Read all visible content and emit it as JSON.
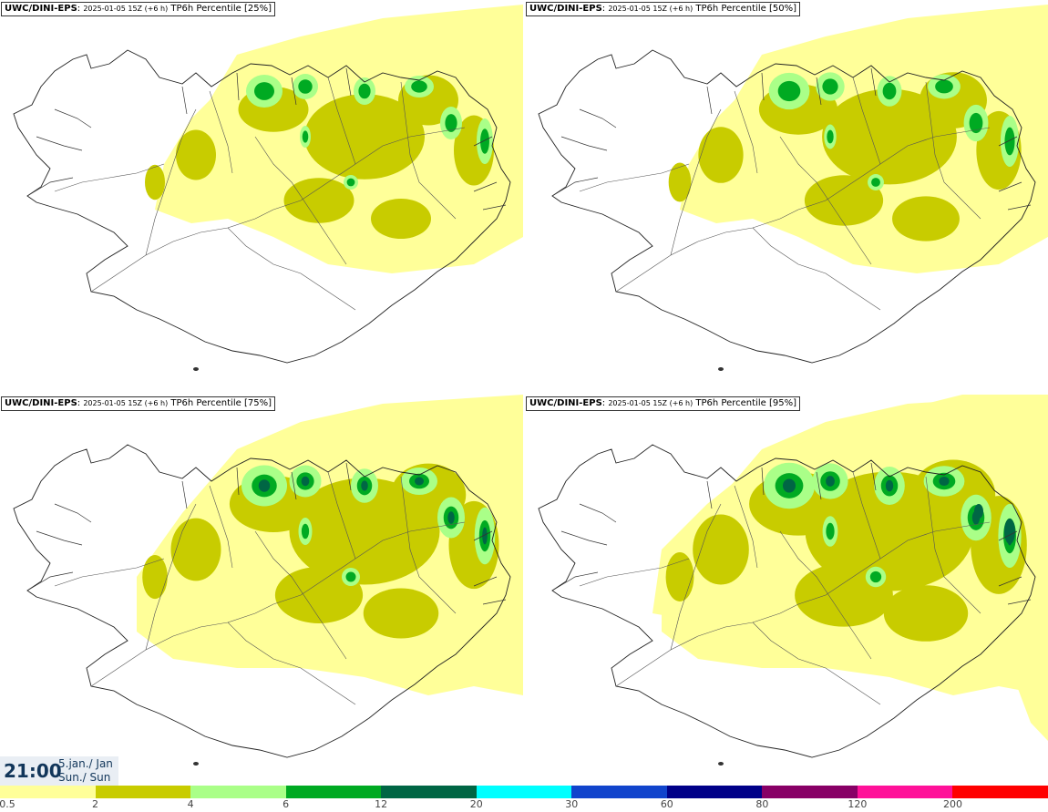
{
  "panels": [
    {
      "model": "UWC/DINI-EPS",
      "run": "2025-01-05 15Z (+6 h)",
      "param": "TP6h Percentile [25%]",
      "max_class": 4
    },
    {
      "model": "UWC/DINI-EPS",
      "run": "2025-01-05 15Z (+6 h)",
      "param": "TP6h Percentile [50%]",
      "max_class": 4
    },
    {
      "model": "UWC/DINI-EPS",
      "run": "2025-01-05 15Z (+6 h)",
      "param": "TP6h Percentile [75%]",
      "max_class": 5
    },
    {
      "model": "UWC/DINI-EPS",
      "run": "2025-01-05 15Z (+6 h)",
      "param": "TP6h Percentile [95%]",
      "max_class": 6
    }
  ],
  "valid_time": {
    "time": "21:00",
    "date_line1": "5.jan./ Jan",
    "date_line2": "Sun./ Sun"
  },
  "legend": {
    "colors": [
      "#ffff99",
      "#c8cc00",
      "#aaff88",
      "#00aa22",
      "#006644",
      "#00ffff",
      "#1144cc",
      "#000088",
      "#880066",
      "#ff1199",
      "#ff0000"
    ],
    "labels": [
      "0.5",
      "2",
      "4",
      "6",
      "12",
      "20",
      "30",
      "60",
      "80",
      "120",
      "200"
    ]
  }
}
